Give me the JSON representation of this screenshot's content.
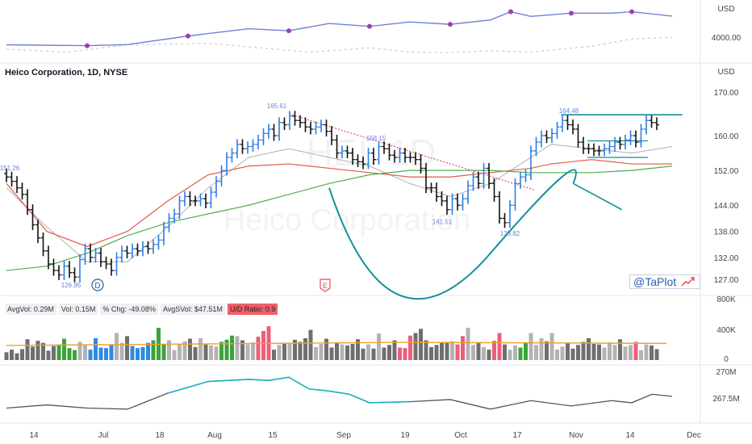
{
  "title": "Heico Corporation, 1D, NYSE",
  "watermark": {
    "symbol": "HEI, 1D",
    "name": "Heico Corporation"
  },
  "brand": "@TaPlot",
  "axes": {
    "top_currency": "USD",
    "top_ticks": [
      "4000.00"
    ],
    "price_currency": "USD",
    "price_ticks": [
      "170.00",
      "160.00",
      "152.00",
      "144.00",
      "138.00",
      "132.00",
      "127.00"
    ],
    "volume_ticks": [
      "800K",
      "400K",
      "0"
    ],
    "bottom_ticks": [
      "270M",
      "267.5M"
    ],
    "x_ticks": [
      "14",
      "Jul",
      "18",
      "Aug",
      "15",
      "Sep",
      "19",
      "Oct",
      "17",
      "Nov",
      "14",
      "Dec"
    ]
  },
  "stats": {
    "avg_vol": "AvgVol: 0.29M",
    "vol": "Vol: 0.15M",
    "pct_chg": "% Chg: -49.08%",
    "avg_dollar_vol": "AvgSVol: $47.51M",
    "ud_ratio": "U/D Ratio: 0.9"
  },
  "markers": {
    "dividend": "D",
    "earnings": "E"
  },
  "colors": {
    "up_bar": "#2f7de1",
    "down_bar": "#111111",
    "ma_red": "#e05a4a",
    "ma_green": "#4caf50",
    "ma_gray": "#b0b0b0",
    "cup_teal": "#138f9a",
    "rs_line": "#6f80d8",
    "index_line": "#c8c8c8",
    "purple_dot": "#9b3fb6",
    "vol_green": "#3aa33a",
    "vol_pink": "#e9607a",
    "vol_blue": "#2f8be0",
    "vol_gray": "#9e9e9e",
    "vol_avg": "#f0a030",
    "obv_line": "#555555"
  },
  "chart_data": {
    "type": "ohlc",
    "price_labels": [
      {
        "label": "151.26",
        "value": 151.26
      },
      {
        "label": "126.95",
        "value": 126.95
      },
      {
        "label": "165.61",
        "value": 165.61
      },
      {
        "label": "158.15",
        "value": 158.15
      },
      {
        "label": "141.51",
        "value": 141.51
      },
      {
        "label": "138.82",
        "value": 138.82
      },
      {
        "label": "164.48",
        "value": 164.48
      }
    ],
    "y_range": [
      124,
      173
    ],
    "volume_range": [
      0,
      900000
    ],
    "obv_range": [
      265000000,
      271500000
    ],
    "price_closes": [
      150.5,
      149.5,
      148,
      146.5,
      143,
      139.5,
      136.5,
      133.5,
      130.5,
      129,
      128,
      130,
      128.5,
      127.5,
      131.5,
      134,
      132,
      133,
      131,
      130.5,
      129,
      132,
      133.5,
      133,
      134,
      133.5,
      134.5,
      134,
      135,
      136,
      139,
      141,
      142,
      145,
      146,
      145,
      145,
      145.5,
      144.5,
      147,
      149.5,
      152,
      155,
      156,
      158,
      157,
      157.5,
      158,
      159,
      160.5,
      161.5,
      160,
      163,
      162.5,
      164.5,
      163.5,
      163,
      162,
      161.5,
      162,
      162.5,
      161,
      159,
      156,
      156.5,
      156,
      154.5,
      154,
      153.5,
      156,
      154.5,
      157.5,
      157,
      155.5,
      155,
      156,
      155,
      155,
      154.5,
      152.5,
      148,
      148,
      146,
      145,
      143,
      145.5,
      144,
      145.5,
      148.5,
      150.5,
      149,
      152.5,
      149,
      146,
      141,
      140,
      144,
      149,
      150.5,
      151,
      156.5,
      158.5,
      160,
      159.5,
      160.5,
      162,
      163.5,
      162.5,
      161.5,
      158.5,
      157,
      157,
      156.5,
      156.5,
      157,
      157.5,
      158.5,
      158,
      159,
      160,
      158.5,
      161.5,
      163.5,
      163,
      162.5
    ],
    "bar_up": [
      0,
      0,
      0,
      0,
      0,
      0,
      0,
      0,
      0,
      0,
      0,
      1,
      0,
      0,
      1,
      1,
      0,
      1,
      0,
      0,
      0,
      1,
      1,
      0,
      1,
      0,
      1,
      0,
      1,
      1,
      1,
      1,
      1,
      1,
      1,
      0,
      0,
      1,
      0,
      1,
      1,
      1,
      1,
      1,
      1,
      0,
      1,
      1,
      1,
      1,
      1,
      0,
      1,
      0,
      1,
      0,
      0,
      0,
      0,
      1,
      1,
      0,
      0,
      0,
      1,
      0,
      0,
      0,
      0,
      1,
      0,
      1,
      0,
      0,
      0,
      1,
      0,
      0,
      0,
      0,
      0,
      0,
      0,
      0,
      0,
      1,
      0,
      1,
      1,
      1,
      0,
      1,
      0,
      0,
      0,
      0,
      1,
      1,
      1,
      1,
      1,
      1,
      1,
      0,
      1,
      1,
      1,
      0,
      0,
      0,
      0,
      0,
      0,
      0,
      1,
      1,
      1,
      0,
      1,
      1,
      0,
      1,
      1,
      0,
      0
    ],
    "ma_red": [
      [
        0,
        149
      ],
      [
        20,
        138
      ],
      [
        40,
        134.5
      ],
      [
        60,
        138
      ],
      [
        80,
        145
      ],
      [
        100,
        151
      ],
      [
        120,
        153
      ],
      [
        140,
        153.5
      ],
      [
        160,
        152.5
      ],
      [
        180,
        151.5
      ],
      [
        200,
        150.5
      ],
      [
        220,
        150.5
      ],
      [
        240,
        151.5
      ],
      [
        260,
        152.5
      ],
      [
        270,
        153.5
      ],
      [
        290,
        154.5
      ],
      [
        310,
        153.5
      ],
      [
        330,
        153.5
      ]
    ],
    "ma_green": [
      [
        0,
        129
      ],
      [
        20,
        130
      ],
      [
        40,
        133
      ],
      [
        60,
        137
      ],
      [
        80,
        140
      ],
      [
        100,
        142
      ],
      [
        120,
        144
      ],
      [
        140,
        146.5
      ],
      [
        160,
        149
      ],
      [
        180,
        151
      ],
      [
        200,
        152
      ],
      [
        220,
        152
      ],
      [
        240,
        152
      ],
      [
        260,
        151.5
      ],
      [
        270,
        151.5
      ],
      [
        290,
        151.5
      ],
      [
        310,
        152
      ],
      [
        330,
        153
      ]
    ],
    "ma_gray": [
      [
        0,
        148
      ],
      [
        20,
        139
      ],
      [
        40,
        131
      ],
      [
        60,
        131
      ],
      [
        80,
        139
      ],
      [
        100,
        148
      ],
      [
        120,
        155
      ],
      [
        140,
        157
      ],
      [
        160,
        155
      ],
      [
        180,
        153
      ],
      [
        200,
        149
      ],
      [
        220,
        146
      ],
      [
        240,
        149
      ],
      [
        260,
        155
      ],
      [
        270,
        158
      ],
      [
        290,
        157
      ],
      [
        310,
        156
      ],
      [
        330,
        157.5
      ]
    ],
    "trendline": [
      [
        140,
        165
      ],
      [
        262,
        147.5
      ]
    ],
    "resistance": [
      [
        275,
        164.8
      ],
      [
        335,
        164.8
      ]
    ],
    "base_lines": [
      [
        [
          288,
          158.8
        ],
        [
          318,
          158.8
        ]
      ],
      [
        [
          288,
          155
        ],
        [
          318,
          155
        ]
      ]
    ],
    "cup": [
      [
        160,
        148
      ],
      [
        190,
        126.5
      ],
      [
        240,
        133
      ],
      [
        281,
        149
      ]
    ],
    "cup_handle": [
      [
        281,
        149
      ],
      [
        305,
        143
      ]
    ],
    "volume": [
      150,
      200,
      130,
      210,
      400,
      260,
      370,
      330,
      180,
      270,
      300,
      410,
      230,
      190,
      350,
      280,
      200,
      420,
      240,
      230,
      300,
      520,
      330,
      460,
      270,
      230,
      250,
      330,
      380,
      620,
      300,
      380,
      190,
      300,
      360,
      410,
      250,
      420,
      300,
      280,
      260,
      350,
      390,
      470,
      460,
      380,
      300,
      340,
      450,
      560,
      650,
      200,
      290,
      320,
      310,
      390,
      350,
      420,
      580,
      250,
      310,
      410,
      240,
      330,
      300,
      280,
      310,
      400,
      220,
      300,
      220,
      510,
      240,
      290,
      380,
      240,
      230,
      470,
      520,
      600,
      380,
      250,
      290,
      330,
      350,
      360,
      300,
      460,
      620,
      290,
      330,
      250,
      200,
      370,
      520,
      300,
      200,
      280,
      240,
      340,
      520,
      290,
      420,
      360,
      520,
      200,
      260,
      330,
      220,
      290,
      350,
      420,
      310,
      300,
      240,
      340,
      290,
      400,
      260,
      290,
      350,
      190,
      300,
      280,
      210
    ],
    "volume_avg": [
      280,
      300,
      320,
      340,
      330,
      320
    ],
    "rs_line": [
      [
        0,
        4015
      ],
      [
        40,
        4012
      ],
      [
        60,
        4016
      ],
      [
        90,
        4045
      ],
      [
        120,
        4070
      ],
      [
        140,
        4063
      ],
      [
        160,
        4088
      ],
      [
        180,
        4078
      ],
      [
        200,
        4093
      ],
      [
        220,
        4085
      ],
      [
        240,
        4100
      ],
      [
        250,
        4128
      ],
      [
        260,
        4112
      ],
      [
        280,
        4123
      ],
      [
        300,
        4123
      ],
      [
        310,
        4128
      ],
      [
        330,
        4113
      ]
    ],
    "index_line": [
      [
        0,
        4000
      ],
      [
        30,
        3990
      ],
      [
        60,
        4015
      ],
      [
        100,
        4020
      ],
      [
        150,
        3990
      ],
      [
        180,
        4005
      ],
      [
        200,
        3990
      ],
      [
        220,
        3988
      ],
      [
        240,
        3995
      ],
      [
        260,
        3990
      ],
      [
        290,
        4010
      ],
      [
        310,
        4035
      ],
      [
        330,
        4040
      ]
    ],
    "obv": [
      [
        0,
        266.9
      ],
      [
        20,
        267.2
      ],
      [
        40,
        266.9
      ],
      [
        60,
        266.8
      ],
      [
        80,
        268.3
      ],
      [
        100,
        269.4
      ],
      [
        120,
        269.6
      ],
      [
        130,
        269.5
      ],
      [
        140,
        269.8
      ],
      [
        150,
        268.7
      ],
      [
        160,
        268.5
      ],
      [
        170,
        268.2
      ],
      [
        180,
        267.4
      ],
      [
        200,
        267.5
      ],
      [
        220,
        267.7
      ],
      [
        240,
        266.8
      ],
      [
        250,
        267.2
      ],
      [
        260,
        267.6
      ],
      [
        280,
        267.1
      ],
      [
        300,
        267.6
      ],
      [
        310,
        267.4
      ],
      [
        320,
        268.2
      ],
      [
        330,
        268.0
      ]
    ]
  }
}
